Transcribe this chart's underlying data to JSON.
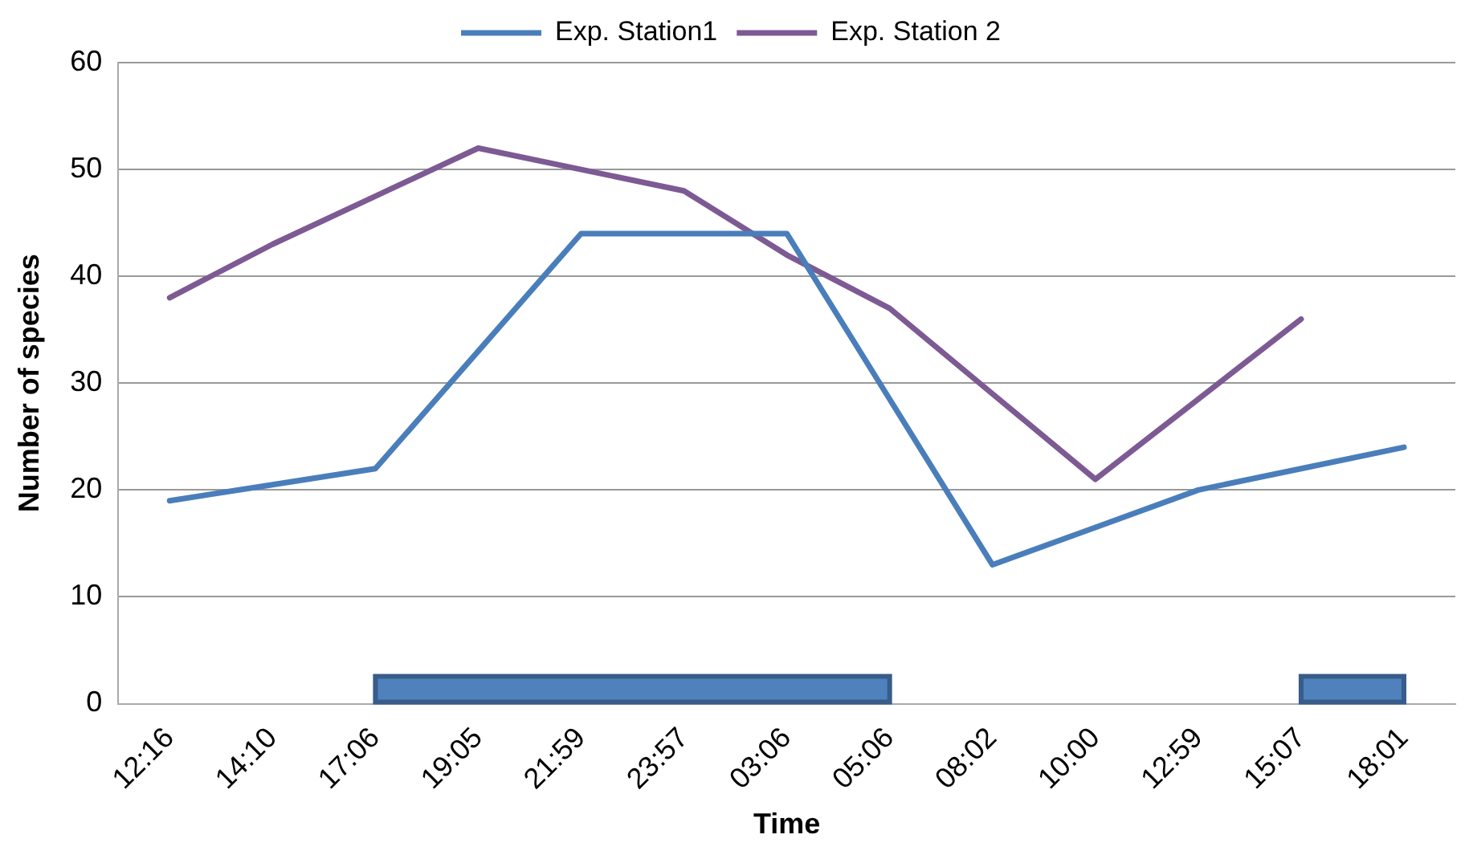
{
  "chart_data": {
    "type": "line",
    "xlabel": "Time",
    "ylabel": "Number of species",
    "categories": [
      "12:16",
      "14:10",
      "17:06",
      "19:05",
      "21:59",
      "23:57",
      "03:06",
      "05:06",
      "08:02",
      "10:00",
      "12:59",
      "15:07",
      "18:01"
    ],
    "series": [
      {
        "name": "Exp. Station1",
        "color": "#4a7ebb",
        "values": [
          19,
          20.5,
          22,
          33,
          44,
          44,
          44,
          28.5,
          13,
          16.5,
          20,
          22,
          24
        ]
      },
      {
        "name": "Exp. Station 2",
        "color": "#7d5a94",
        "values": [
          38,
          43,
          47.5,
          52,
          50,
          48,
          42,
          37,
          29,
          21,
          28.5,
          36,
          null
        ]
      }
    ],
    "ylim": [
      0,
      60
    ],
    "yticks": [
      0,
      10,
      20,
      30,
      40,
      50,
      60
    ],
    "bands": [
      {
        "axis": "x",
        "from": "17:06",
        "to": "05:06",
        "color": "#4f81bd"
      },
      {
        "axis": "x",
        "from": "15:07",
        "to": "18:01",
        "color": "#4f81bd"
      }
    ],
    "grid": "y",
    "legend": "top",
    "marker": "none",
    "line_style": "solid"
  }
}
